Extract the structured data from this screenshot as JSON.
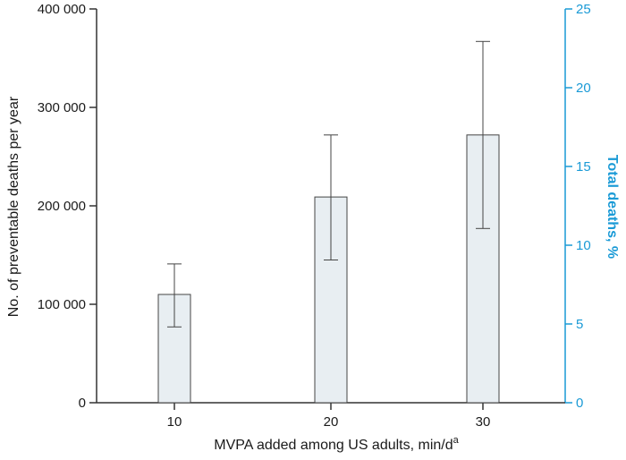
{
  "chart_data": {
    "type": "bar",
    "categories": [
      "10",
      "20",
      "30"
    ],
    "values": [
      110000,
      209000,
      272000
    ],
    "error_low": [
      77000,
      145000,
      177000
    ],
    "error_high": [
      141000,
      272000,
      367000
    ],
    "xlabel": "MVPA added among US adults, min/d",
    "xlabel_superscript": "a",
    "ylabel": "No. of preventable deaths per year",
    "ylim": [
      0,
      400000
    ],
    "yticks": [
      0,
      100000,
      200000,
      300000,
      400000
    ],
    "ytick_labels": [
      "0",
      "100 000",
      "200 000",
      "300 000",
      "400 000"
    ],
    "y2label": "Total deaths, %",
    "y2lim": [
      0,
      25
    ],
    "y2ticks": [
      0,
      5,
      10,
      15,
      20,
      25
    ],
    "y2tick_labels": [
      "0",
      "5",
      "10",
      "15",
      "20",
      "25"
    ],
    "grid": false
  },
  "colors": {
    "bar_fill": "#e8eef2",
    "bar_stroke": "#444444",
    "axis": "#333333",
    "right_axis": "#1a9ad6"
  }
}
